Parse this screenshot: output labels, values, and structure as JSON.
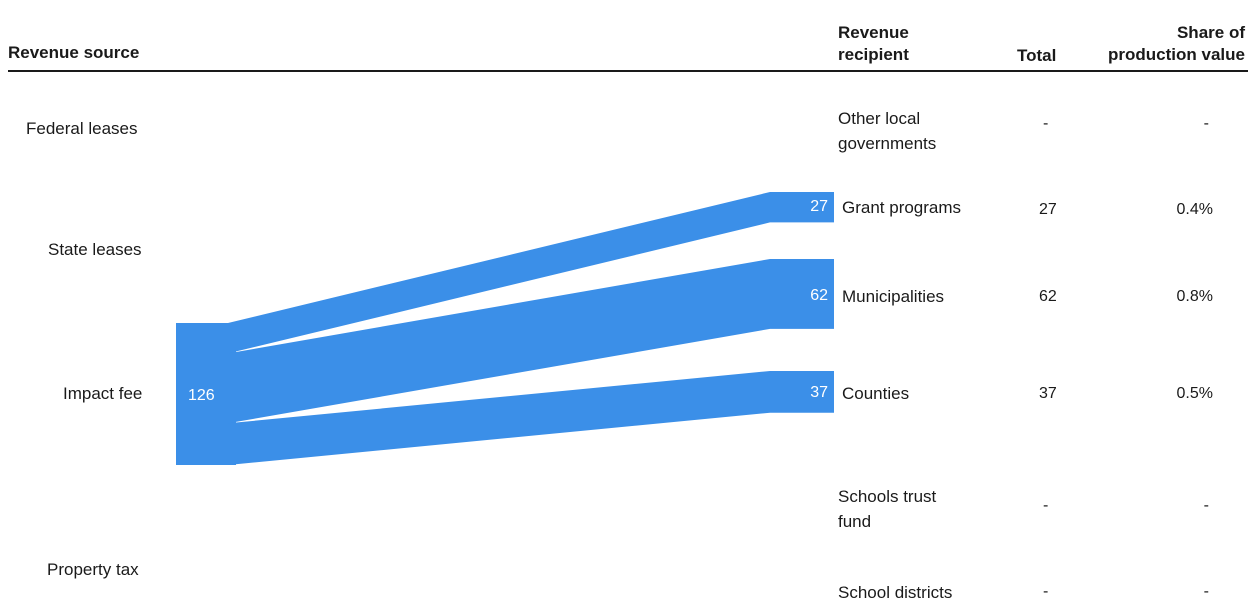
{
  "header": {
    "source": "Revenue source",
    "recipient_line1": "Revenue",
    "recipient_line2": "recipient",
    "total": "Total",
    "share_line1": "Share of",
    "share_line2": "production value"
  },
  "sources": [
    {
      "label": "Federal leases"
    },
    {
      "label": "State leases"
    },
    {
      "label": "Impact fee",
      "value": 126
    },
    {
      "label": "Property tax"
    }
  ],
  "recipients": [
    {
      "line1": "Other local",
      "line2": "governments",
      "total": "-",
      "share": "-"
    },
    {
      "line1": "Grant programs",
      "line2": "",
      "total": "27",
      "share": "0.4%",
      "value": 27
    },
    {
      "line1": "Municipalities",
      "line2": "",
      "total": "62",
      "share": "0.8%",
      "value": 62
    },
    {
      "line1": "Counties",
      "line2": "",
      "total": "37",
      "share": "0.5%",
      "value": 37
    },
    {
      "line1": "Schools trust",
      "line2": "fund",
      "total": "-",
      "share": "-"
    },
    {
      "line1": "School districts",
      "line2": "",
      "total": "-",
      "share": "-"
    }
  ],
  "colors": {
    "flow": "#3b8fe8"
  }
}
